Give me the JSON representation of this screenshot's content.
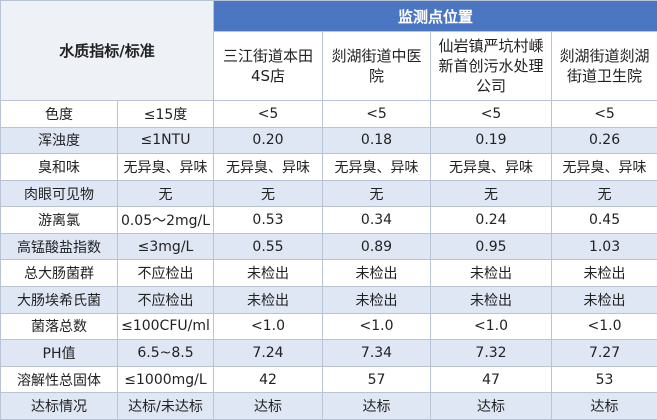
{
  "header": {
    "indicator_title": "水质指标/标准",
    "sites_title": "监测点位置",
    "sites": [
      "三江街道本田4S店",
      "剡湖街道中医院",
      "仙岩镇严坑村嵊新首创污水处理公司",
      "剡湖街道剡湖街道卫生院"
    ]
  },
  "rows": [
    {
      "indicator": "色度",
      "standard": "≤15度",
      "values": [
        "<5",
        "<5",
        "<5",
        "<5"
      ]
    },
    {
      "indicator": "浑浊度",
      "standard": "≤1NTU",
      "values": [
        "0.20",
        "0.18",
        "0.19",
        "0.26"
      ]
    },
    {
      "indicator": "臭和味",
      "standard": "无异臭、异味",
      "values": [
        "无异臭、异味",
        "无异臭、异味",
        "无异臭、异味",
        "无异臭、异味"
      ]
    },
    {
      "indicator": "肉眼可见物",
      "standard": "无",
      "values": [
        "无",
        "无",
        "无",
        "无"
      ]
    },
    {
      "indicator": "游离氯",
      "standard": "0.05～2mg/L",
      "values": [
        "0.53",
        "0.34",
        "0.24",
        "0.45"
      ]
    },
    {
      "indicator": "高锰酸盐指数",
      "standard": "≤3mg/L",
      "values": [
        "0.55",
        "0.89",
        "0.95",
        "1.03"
      ]
    },
    {
      "indicator": "总大肠菌群",
      "standard": "不应检出",
      "values": [
        "未检出",
        "未检出",
        "未检出",
        "未检出"
      ]
    },
    {
      "indicator": "大肠埃希氏菌",
      "standard": "不应检出",
      "values": [
        "未检出",
        "未检出",
        "未检出",
        "未检出"
      ]
    },
    {
      "indicator": "菌落总数",
      "standard": "≤100CFU/ml",
      "values": [
        "<1.0",
        "<1.0",
        "<1.0",
        "<1.0"
      ]
    },
    {
      "indicator": "PH值",
      "standard": "6.5~8.5",
      "values": [
        "7.24",
        "7.34",
        "7.32",
        "7.27"
      ]
    },
    {
      "indicator": "溶解性总固体",
      "standard": "≤1000mg/L",
      "values": [
        "42",
        "57",
        "47",
        "53"
      ]
    },
    {
      "indicator": "达标情况",
      "standard": "达标/未达标",
      "values": [
        "达标",
        "达标",
        "达标",
        "达标"
      ]
    }
  ]
}
